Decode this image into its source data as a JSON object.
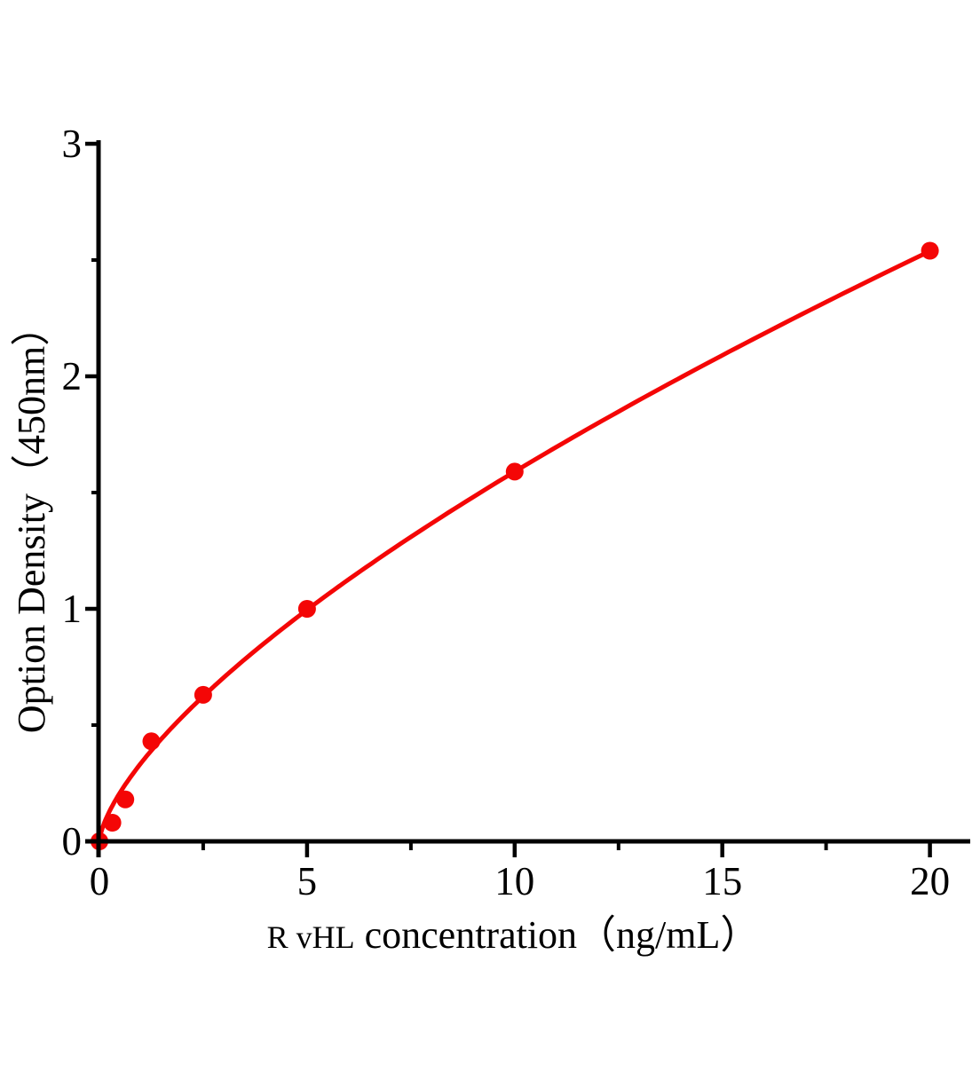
{
  "figure": {
    "background": "#ffffff",
    "axis_color": "#000000",
    "accent_color": "#f40606"
  },
  "chart_data": {
    "type": "scatter",
    "title": "",
    "xlabel": {
      "prefix": "R vHL",
      "rest": " concentration（ng/mL）",
      "full": "R vHL concentration（ng/mL）"
    },
    "ylabel": "Option Density（450nm）",
    "x": [
      0,
      0.312,
      0.625,
      1.25,
      2.5,
      5,
      10,
      20
    ],
    "values": [
      0,
      0.08,
      0.18,
      0.43,
      0.63,
      1.0,
      1.59,
      2.54
    ],
    "xlim": [
      0,
      21
    ],
    "ylim": [
      0,
      3
    ],
    "x_major_ticks": [
      0,
      5,
      10,
      15,
      20
    ],
    "x_minor_ticks": [
      2.5,
      7.5,
      12.5,
      17.5
    ],
    "y_major_ticks": [
      0,
      1,
      2,
      3
    ],
    "y_minor_ticks": [
      0.5,
      1.5,
      2.5
    ],
    "x_tick_labels": [
      "0",
      "5",
      "10",
      "15",
      "20"
    ],
    "y_tick_labels": [
      "0",
      "1",
      "2",
      "3"
    ],
    "fit_curve": {
      "type": "power",
      "a": 0.336,
      "b": 0.675,
      "x_range": [
        0,
        20
      ]
    },
    "marker": {
      "shape": "circle",
      "radius_px": 10
    },
    "grid": false,
    "legend": null
  }
}
